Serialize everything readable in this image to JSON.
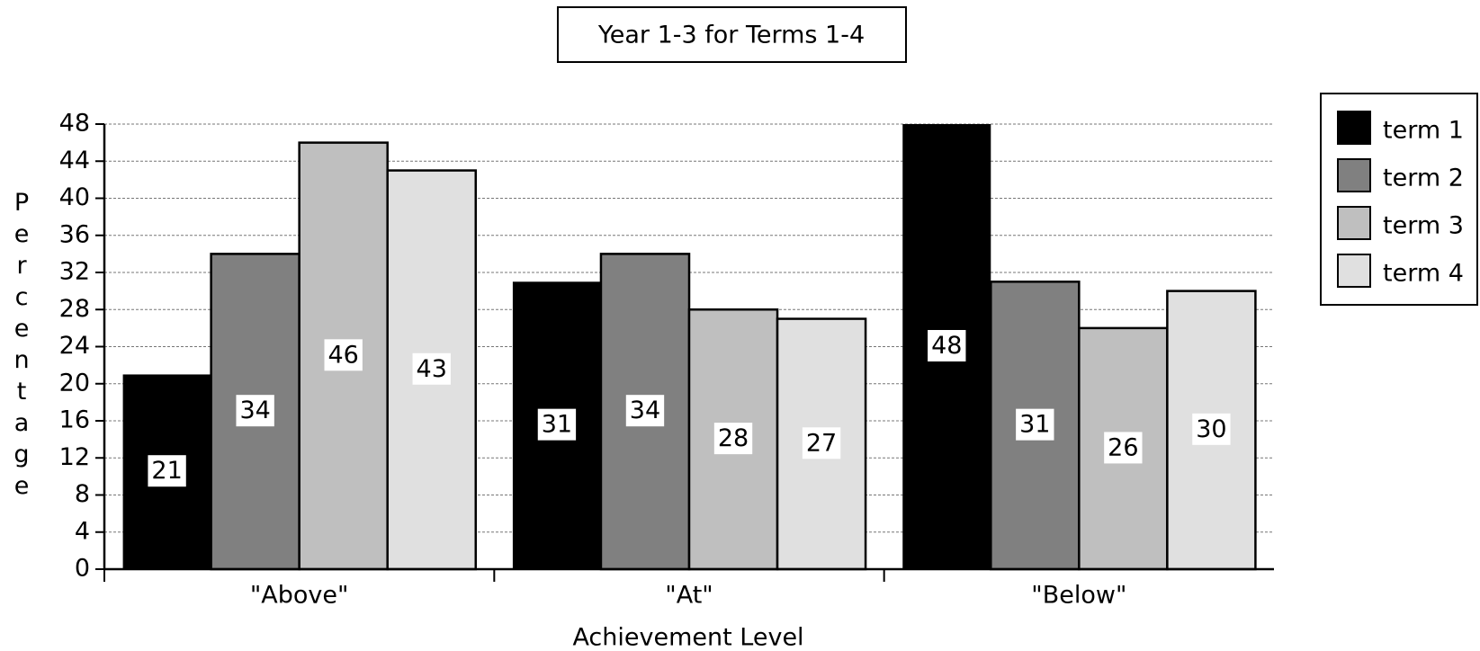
{
  "chart_data": {
    "type": "bar",
    "title": "Year 1-3 for Terms 1-4",
    "x_label": "Achievement Level",
    "y_label": "Percentage",
    "categories": [
      "\"Above\"",
      "\"At\"",
      "\"Below\""
    ],
    "series": [
      {
        "name": "term 1",
        "color": "#000000",
        "values": [
          21,
          31,
          48
        ]
      },
      {
        "name": "term 2",
        "color": "#808080",
        "values": [
          34,
          34,
          31
        ]
      },
      {
        "name": "term 3",
        "color": "#bfbfbf",
        "values": [
          46,
          28,
          26
        ]
      },
      {
        "name": "term 4",
        "color": "#e0e0e0",
        "values": [
          43,
          27,
          30
        ]
      }
    ],
    "ylim": [
      0,
      48
    ],
    "yticks": [
      0,
      4,
      8,
      12,
      16,
      20,
      24,
      28,
      32,
      36,
      40,
      44,
      48
    ],
    "grid": true,
    "legend": "right"
  }
}
